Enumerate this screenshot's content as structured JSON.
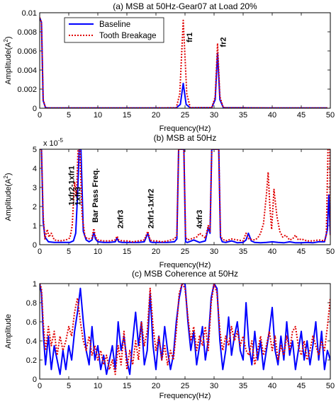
{
  "chart_data": [
    {
      "type": "line",
      "title": "(a) MSB at 50Hz-Gear07 at Load 20%",
      "xlabel": "Frequency(Hz)",
      "ylabel_main": "Amplitude(A",
      "ylabel_sup": "2",
      "ylabel_end": ")",
      "xlim": [
        0,
        50
      ],
      "ylim": [
        0,
        0.01
      ],
      "xticks": [
        "0",
        "5",
        "10",
        "15",
        "20",
        "25",
        "30",
        "35",
        "40",
        "45",
        "50"
      ],
      "yticks": [
        "0",
        "0.002",
        "0.004",
        "0.006",
        "0.008",
        "0.01"
      ],
      "legend_position": "top-left",
      "annotations": [
        {
          "text": "fr1",
          "x": 26.2,
          "y": 0.0069
        },
        {
          "text": "fr2",
          "x": 32.0,
          "y": 0.0064
        }
      ],
      "series": [
        {
          "name": "Baseline",
          "color": "#0000ff",
          "style": "solid",
          "x": [
            0,
            0.3,
            0.6,
            1.0,
            1.4,
            5,
            10,
            15,
            20,
            23.5,
            24.2,
            24.7,
            25.2,
            25.9,
            29.6,
            30.2,
            30.6,
            31.0,
            31.6,
            40,
            49.5
          ],
          "y": [
            0.0095,
            0.009,
            0.0008,
            5e-05,
            3e-05,
            3e-05,
            3e-05,
            3e-05,
            3e-05,
            4e-05,
            0.0004,
            0.0026,
            0.0004,
            4e-05,
            5e-05,
            0.0009,
            0.0058,
            0.0009,
            5e-05,
            3e-05,
            3e-05
          ]
        },
        {
          "name": "Tooth Breakage",
          "color": "#e00000",
          "style": "dotted",
          "x": [
            0,
            0.3,
            0.6,
            1.0,
            1.4,
            5,
            10,
            15,
            20,
            23.5,
            24.1,
            24.7,
            25.3,
            25.9,
            29.6,
            30.2,
            30.6,
            31.0,
            31.6,
            40,
            49.5
          ],
          "y": [
            0.0095,
            0.009,
            0.0009,
            5e-05,
            3e-05,
            3e-05,
            3e-05,
            3e-05,
            3e-05,
            5e-05,
            0.0015,
            0.0092,
            0.0015,
            5e-05,
            5e-05,
            0.0012,
            0.0068,
            0.0012,
            5e-05,
            3e-05,
            3e-05
          ]
        }
      ]
    },
    {
      "type": "line",
      "title": "(b) MSB at 50Hz",
      "xlabel": "Frequency(Hz)",
      "ylabel_main": "Amplitude(A",
      "ylabel_sup": "2",
      "ylabel_end": ")",
      "xlim": [
        0,
        50
      ],
      "ylim": [
        0,
        5
      ],
      "scale_label": "x 10",
      "scale_exp": "-5",
      "xticks": [
        "0",
        "5",
        "10",
        "15",
        "20",
        "25",
        "30",
        "35",
        "40",
        "45",
        "50"
      ],
      "yticks": [
        "0",
        "1",
        "2",
        "3",
        "4",
        "5"
      ],
      "annotations": [
        {
          "text": "1xfr2-1xfr1",
          "x": 5.9,
          "y": 2.05
        },
        {
          "text": "1xfr3",
          "x": 7.0,
          "y": 2.05
        },
        {
          "text": "Bar Pass Freq.",
          "x": 10.0,
          "y": 1.15
        },
        {
          "text": "2xfr3",
          "x": 14.3,
          "y": 0.85
        },
        {
          "text": "2xfr1-1xfr2",
          "x": 19.6,
          "y": 0.85
        },
        {
          "text": "4xfr3",
          "x": 27.9,
          "y": 0.85
        }
      ],
      "series": [
        {
          "name": "Baseline",
          "color": "#0000ff",
          "style": "solid",
          "x": [
            0,
            0.3,
            0.6,
            0.9,
            1.5,
            2.5,
            3.5,
            4.5,
            5.2,
            5.8,
            6.2,
            6.5,
            6.8,
            7.1,
            7.5,
            8.0,
            8.5,
            9.0,
            9.3,
            9.6,
            10.0,
            11.0,
            12.0,
            13.0,
            13.3,
            13.6,
            14.2,
            15,
            16,
            17,
            18,
            18.6,
            19.0,
            19.4,
            20,
            21,
            22,
            23.2,
            23.6,
            23.9,
            24.2,
            24.5,
            24.8,
            25.1,
            25.4,
            25.7,
            26.5,
            27.5,
            28.5,
            29.0,
            29.3,
            29.6,
            29.9,
            30.2,
            30.5,
            30.8,
            31.1,
            31.4,
            32,
            33,
            34,
            35,
            35.5,
            35.9,
            36.4,
            37,
            38,
            39,
            40,
            41,
            42,
            43,
            44,
            45,
            46,
            47,
            48,
            49,
            49.5,
            49.75,
            50
          ],
          "y": [
            5,
            5,
            1.2,
            0.4,
            0.15,
            0.12,
            0.12,
            0.12,
            0.12,
            0.2,
            0.6,
            2.5,
            5,
            5,
            0.7,
            0.25,
            0.15,
            0.25,
            0.65,
            0.3,
            0.15,
            0.12,
            0.12,
            0.15,
            0.35,
            0.15,
            0.12,
            0.12,
            0.12,
            0.12,
            0.15,
            0.6,
            0.15,
            0.12,
            0.12,
            0.12,
            0.12,
            0.15,
            0.3,
            5,
            5,
            5,
            5,
            0.15,
            0.12,
            0.15,
            0.25,
            0.12,
            0.2,
            0.9,
            0.6,
            5,
            5,
            5,
            5,
            5,
            0.4,
            0.15,
            0.12,
            0.2,
            0.1,
            0.12,
            0.25,
            0.6,
            0.2,
            0.12,
            0.1,
            0.12,
            0.15,
            0.12,
            0.1,
            0.15,
            0.1,
            0.1,
            0.12,
            0.1,
            0.15,
            0.15,
            0.8,
            2.6,
            0.5
          ]
        },
        {
          "name": "Tooth Breakage",
          "color": "#e00000",
          "style": "dotted",
          "x": [
            0,
            0.3,
            0.6,
            0.9,
            1.3,
            1.6,
            2.0,
            2.5,
            3.5,
            4.5,
            5.2,
            5.6,
            6.0,
            6.3,
            6.6,
            6.9,
            7.3,
            7.8,
            8.3,
            9.0,
            9.3,
            9.6,
            10.0,
            11.0,
            12.0,
            13.0,
            13.3,
            13.6,
            14.2,
            15,
            16,
            17,
            18,
            18.6,
            19.0,
            19.4,
            20,
            21,
            22,
            23.2,
            23.6,
            23.9,
            24.2,
            24.5,
            24.8,
            25.1,
            25.4,
            26,
            27,
            27.5,
            28.5,
            29.0,
            29.3,
            29.6,
            29.9,
            30.2,
            30.5,
            30.8,
            31.1,
            31.4,
            32,
            33,
            34,
            35,
            35.5,
            36,
            37,
            37.5,
            38,
            38.5,
            39.0,
            39.3,
            39.6,
            39.9,
            40.3,
            40.8,
            41.3,
            41.8,
            42.3,
            43,
            43.5,
            44,
            44.5,
            45,
            46,
            47,
            48,
            49,
            49.3,
            49.6,
            49.9,
            50
          ],
          "y": [
            5,
            5,
            1.5,
            0.3,
            0.8,
            0.4,
            0.6,
            0.25,
            0.2,
            0.25,
            0.35,
            1.0,
            3.3,
            2.5,
            5,
            5,
            1.5,
            0.4,
            0.3,
            0.35,
            0.85,
            0.4,
            0.25,
            0.2,
            0.2,
            0.25,
            0.45,
            0.25,
            0.2,
            0.2,
            0.15,
            0.2,
            0.25,
            0.7,
            0.25,
            0.2,
            0.2,
            0.15,
            0.2,
            0.3,
            0.5,
            5,
            5,
            5,
            5,
            0.4,
            0.25,
            0.3,
            0.4,
            0.6,
            0.35,
            1.0,
            0.7,
            5,
            5,
            5,
            5,
            5,
            0.5,
            0.3,
            0.2,
            0.3,
            0.25,
            0.2,
            0.6,
            0.3,
            0.25,
            0.35,
            0.6,
            1.1,
            2.6,
            3.8,
            2.0,
            0.8,
            2.9,
            1.5,
            0.7,
            0.4,
            0.5,
            0.25,
            0.3,
            0.5,
            0.25,
            0.3,
            0.2,
            0.2,
            0.25,
            0.2,
            0.5,
            5,
            5,
            0.5
          ]
        }
      ]
    },
    {
      "type": "line",
      "title": "(c) MSB Coherence at 50Hz",
      "xlabel": "Frequency(Hz)",
      "ylabel": "Amplitude",
      "xlim": [
        0,
        50
      ],
      "ylim": [
        0,
        1
      ],
      "xticks": [
        "0",
        "5",
        "10",
        "15",
        "20",
        "25",
        "30",
        "35",
        "40",
        "45",
        "50"
      ],
      "yticks": [
        "0",
        "0.2",
        "0.4",
        "0.6",
        "0.8",
        "1"
      ],
      "series": [
        {
          "name": "Baseline",
          "color": "#0000ff",
          "style": "solid",
          "x": [
            0,
            0.3,
            0.6,
            1,
            1.5,
            2,
            2.5,
            3,
            3.5,
            4,
            4.5,
            5,
            5.5,
            6,
            6.5,
            7,
            7.5,
            8,
            8.5,
            9,
            9.5,
            10,
            10.5,
            11,
            11.5,
            12,
            12.5,
            13,
            13.5,
            14,
            14.5,
            15,
            15.5,
            16,
            16.5,
            17,
            17.5,
            18,
            18.5,
            19,
            19.5,
            20,
            20.5,
            21,
            21.5,
            22,
            22.5,
            23,
            23.5,
            24,
            24.5,
            25,
            25.5,
            26,
            26.5,
            27,
            27.5,
            28,
            28.5,
            29,
            29.5,
            30,
            30.5,
            31,
            31.5,
            32,
            32.5,
            33,
            33.5,
            34,
            34.5,
            35,
            35.5,
            36,
            36.5,
            37,
            37.5,
            38,
            38.5,
            39,
            39.5,
            40,
            40.5,
            41,
            41.5,
            42,
            42.5,
            43,
            43.5,
            44,
            44.5,
            45,
            45.5,
            46,
            46.5,
            47,
            47.5,
            48,
            48.5,
            49,
            49.5,
            50
          ],
          "y": [
            1.0,
            0.9,
            0.5,
            0.15,
            0.45,
            0.1,
            0.35,
            0.2,
            0.05,
            0.3,
            0.1,
            0.35,
            0.2,
            0.5,
            0.7,
            0.95,
            0.6,
            0.3,
            0.15,
            0.55,
            0.2,
            0.35,
            0.1,
            0.25,
            0.05,
            0.2,
            0.35,
            0.1,
            0.6,
            0.3,
            0.45,
            0.2,
            0.05,
            0.4,
            0.7,
            0.35,
            0.6,
            0.15,
            0.3,
            0.9,
            0.35,
            0.1,
            0.45,
            0.2,
            0.55,
            0.3,
            0.1,
            0.25,
            0.6,
            0.85,
            1.0,
            1.0,
            0.6,
            0.3,
            0.5,
            0.15,
            0.35,
            0.55,
            0.2,
            0.4,
            0.85,
            1.0,
            0.95,
            0.4,
            0.1,
            0.3,
            0.65,
            0.25,
            0.45,
            0.6,
            0.3,
            0.2,
            0.8,
            0.35,
            0.15,
            0.5,
            0.2,
            0.4,
            0.1,
            0.3,
            0.5,
            0.75,
            0.3,
            0.15,
            0.45,
            0.2,
            0.6,
            0.25,
            0.4,
            0.1,
            0.3,
            0.5,
            0.2,
            0.4,
            0.15,
            0.35,
            0.6,
            0.2,
            0.5,
            0.1,
            0.3,
            0.2
          ]
        },
        {
          "name": "Tooth Breakage",
          "color": "#e00000",
          "style": "dotted",
          "x": [
            0,
            0.3,
            0.6,
            1,
            1.5,
            2,
            2.5,
            3,
            3.5,
            4,
            4.5,
            5,
            5.5,
            6,
            6.5,
            7,
            7.5,
            8,
            8.5,
            9,
            9.5,
            10,
            10.5,
            11,
            11.5,
            12,
            12.5,
            13,
            13.5,
            14,
            14.5,
            15,
            15.5,
            16,
            16.5,
            17,
            17.5,
            18,
            18.5,
            19,
            19.5,
            20,
            20.5,
            21,
            21.5,
            22,
            22.5,
            23,
            23.5,
            24,
            24.5,
            25,
            25.5,
            26,
            26.5,
            27,
            27.5,
            28,
            28.5,
            29,
            29.5,
            30,
            30.5,
            31,
            31.5,
            32,
            32.5,
            33,
            33.5,
            34,
            34.5,
            35,
            35.5,
            36,
            36.5,
            37,
            37.5,
            38,
            38.5,
            39,
            39.5,
            40,
            40.5,
            41,
            41.5,
            42,
            42.5,
            43,
            43.5,
            44,
            44.5,
            45,
            45.5,
            46,
            46.5,
            47,
            47.5,
            48,
            48.5,
            49,
            49.5,
            50
          ],
          "y": [
            1.0,
            0.95,
            0.6,
            0.3,
            0.55,
            0.35,
            0.5,
            0.25,
            0.45,
            0.3,
            0.4,
            0.55,
            0.45,
            0.7,
            0.85,
            0.6,
            0.4,
            0.3,
            0.45,
            0.25,
            0.35,
            0.2,
            0.3,
            0.15,
            0.25,
            0.1,
            0.2,
            0.05,
            0.35,
            0.15,
            0.5,
            0.1,
            0.3,
            0.15,
            0.4,
            0.2,
            0.6,
            0.35,
            0.5,
            0.95,
            0.55,
            0.3,
            0.45,
            0.2,
            0.35,
            0.15,
            0.3,
            0.2,
            0.5,
            0.9,
            1.0,
            0.95,
            0.65,
            0.4,
            0.55,
            0.3,
            0.45,
            0.35,
            0.55,
            0.3,
            0.8,
            1.0,
            0.9,
            0.5,
            0.3,
            0.45,
            0.35,
            0.55,
            0.4,
            0.5,
            0.35,
            0.45,
            0.3,
            0.25,
            0.4,
            0.15,
            0.3,
            0.45,
            0.25,
            0.35,
            0.5,
            0.3,
            0.45,
            0.2,
            0.35,
            0.25,
            0.45,
            0.3,
            0.5,
            0.55,
            0.35,
            0.25,
            0.4,
            0.2,
            0.3,
            0.45,
            0.35,
            0.25,
            0.4,
            0.3,
            0.55,
            0.85
          ]
        }
      ]
    }
  ]
}
